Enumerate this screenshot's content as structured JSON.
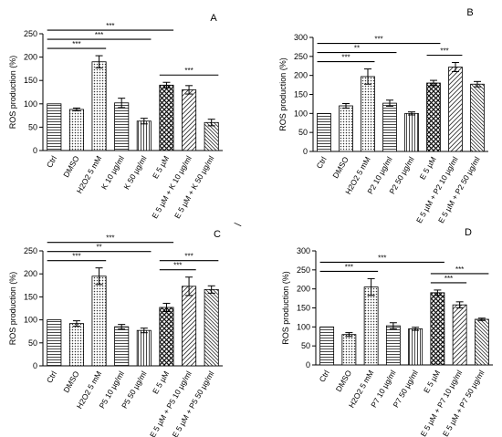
{
  "chart_data": [
    {
      "type": "bar",
      "panel_label": "A",
      "ylabel": "ROS production (%)",
      "ylim": [
        0,
        250
      ],
      "yticks": [
        0,
        50,
        100,
        150,
        200,
        250
      ],
      "categories": [
        "Ctrl",
        "DMSO",
        "H2O2 5 mM",
        "K 10 µg/ml",
        "K 50 µg/ml",
        "E 5 µM",
        "E 5 µM + K 10 µg/ml",
        "E 5 µM + K 50 µg/ml"
      ],
      "values": [
        100,
        88,
        190,
        102,
        63,
        140,
        130,
        60
      ],
      "errors": [
        0,
        3,
        13,
        10,
        6,
        6,
        9,
        7
      ],
      "patterns": [
        "hstripe",
        "dots",
        "dots",
        "hstripe",
        "vstripe",
        "cross",
        "diagl",
        "diagr"
      ],
      "significance": [
        {
          "from": 0,
          "to": 5,
          "label": "***"
        },
        {
          "from": 0,
          "to": 4,
          "label": "***"
        },
        {
          "from": 0,
          "to": 2,
          "label": "***"
        },
        {
          "from": 5,
          "to": 7,
          "label": "***"
        }
      ]
    },
    {
      "type": "bar",
      "panel_label": "B",
      "ylabel": "ROS production (%)",
      "ylim": [
        0,
        300
      ],
      "yticks": [
        0,
        50,
        100,
        150,
        200,
        250,
        300
      ],
      "categories": [
        "Ctrl",
        "DMSO",
        "H2O2 5 mM",
        "P2 10 µg/ml",
        "P2 50 µg/ml",
        "E 5 µM",
        "E 5 µM + P2 10 µg/ml",
        "E 5 µM + P2 50 µg/ml"
      ],
      "values": [
        100,
        120,
        197,
        127,
        100,
        180,
        222,
        177
      ],
      "errors": [
        0,
        6,
        20,
        8,
        4,
        7,
        12,
        7
      ],
      "patterns": [
        "hstripe",
        "dots",
        "dots",
        "hstripe",
        "vstripe",
        "cross",
        "diagl",
        "diagr"
      ],
      "significance": [
        {
          "from": 0,
          "to": 5,
          "label": "***"
        },
        {
          "from": 0,
          "to": 3,
          "label": "**"
        },
        {
          "from": 0,
          "to": 2,
          "label": "***"
        },
        {
          "from": 5,
          "to": 6,
          "label": "***"
        }
      ]
    },
    {
      "type": "bar",
      "panel_label": "C",
      "ylabel": "ROS production (%)",
      "ylim": [
        0,
        250
      ],
      "yticks": [
        0,
        50,
        100,
        150,
        200,
        250
      ],
      "categories": [
        "Ctrl",
        "DMSO",
        "H2O2 5 mM",
        "P5 10 µg/ml",
        "P5 50 µg/ml",
        "E 5 µM",
        "E 5 µM + P5 10 µg/ml",
        "E 5 µM + P5 50 µg/ml"
      ],
      "values": [
        100,
        92,
        195,
        85,
        77,
        127,
        173,
        166
      ],
      "errors": [
        0,
        6,
        18,
        5,
        5,
        9,
        20,
        8
      ],
      "patterns": [
        "hstripe",
        "dots",
        "dots",
        "hstripe",
        "vstripe",
        "cross",
        "diagl",
        "diagr"
      ],
      "significance": [
        {
          "from": 0,
          "to": 5,
          "label": "***"
        },
        {
          "from": 0,
          "to": 4,
          "label": "**"
        },
        {
          "from": 0,
          "to": 2,
          "label": "***"
        },
        {
          "from": 5,
          "to": 7,
          "label": "***"
        },
        {
          "from": 5,
          "to": 6,
          "label": "***"
        }
      ]
    },
    {
      "type": "bar",
      "panel_label": "D",
      "ylabel": "ROS production (%)",
      "ylim": [
        0,
        300
      ],
      "yticks": [
        0,
        50,
        100,
        150,
        200,
        250,
        300
      ],
      "categories": [
        "Ctrl",
        "DMSO",
        "H2O2 5 mM",
        "P7 10 µg/ml",
        "P7 50 µg/ml",
        "E 5 µM",
        "E 5 µM + P7 10 µg/ml",
        "E 5 µM + P7 50 µg/ml"
      ],
      "values": [
        100,
        80,
        205,
        103,
        95,
        190,
        158,
        120
      ],
      "errors": [
        0,
        5,
        22,
        8,
        4,
        7,
        8,
        3
      ],
      "patterns": [
        "hstripe",
        "dots",
        "dots",
        "hstripe",
        "vstripe",
        "cross",
        "diagl",
        "diagr"
      ],
      "significance": [
        {
          "from": 0,
          "to": 5,
          "label": "***"
        },
        {
          "from": 0,
          "to": 2,
          "label": "***"
        },
        {
          "from": 5,
          "to": 7,
          "label": "***"
        },
        {
          "from": 5,
          "to": 6,
          "label": "***"
        }
      ]
    }
  ]
}
